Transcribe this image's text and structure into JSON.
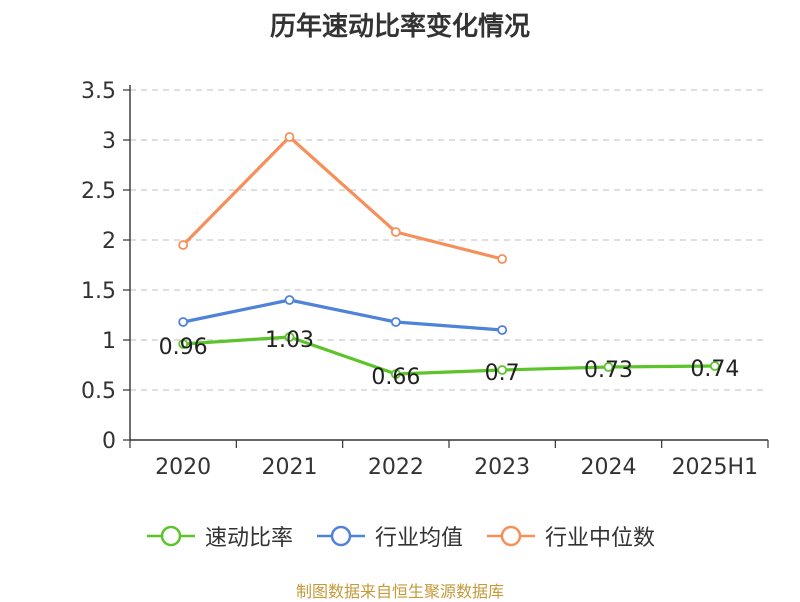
{
  "chart_data": {
    "type": "line",
    "title": "历年速动比率变化情况",
    "categories": [
      "2020",
      "2021",
      "2022",
      "2023",
      "2024",
      "2025H1"
    ],
    "ylim": [
      0,
      3.5
    ],
    "yticks": [
      "0",
      "0.5",
      "1",
      "1.5",
      "2",
      "2.5",
      "3",
      "3.5"
    ],
    "grid": true,
    "legend_position": "bottom",
    "series": [
      {
        "name": "速动比率",
        "color": "#5cc42b",
        "values": [
          0.96,
          1.03,
          0.66,
          0.7,
          0.73,
          0.74
        ],
        "labels": [
          "0.96",
          "1.03",
          "0.66",
          "0.7",
          "0.73",
          "0.74"
        ]
      },
      {
        "name": "行业均值",
        "color": "#4f82d9",
        "values": [
          1.18,
          1.4,
          1.18,
          1.1,
          null,
          null
        ]
      },
      {
        "name": "行业中位数",
        "color": "#f5905a",
        "values": [
          1.95,
          3.03,
          2.08,
          1.81,
          null,
          null
        ]
      }
    ]
  },
  "source_note": "制图数据来自恒生聚源数据库"
}
